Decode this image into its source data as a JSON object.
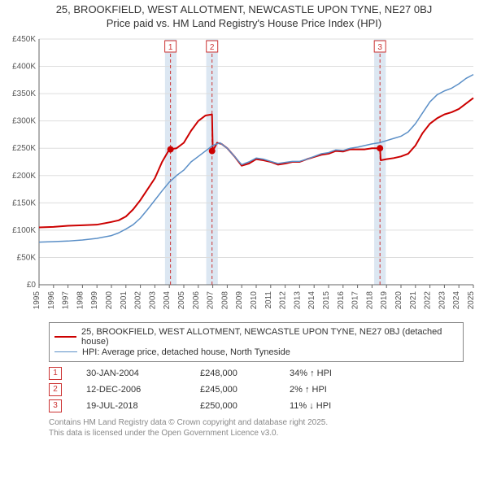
{
  "title_line1": "25, BROOKFIELD, WEST ALLOTMENT, NEWCASTLE UPON TYNE, NE27 0BJ",
  "title_line2": "Price paid vs. HM Land Registry's House Price Index (HPI)",
  "chart": {
    "type": "line",
    "background_color": "#ffffff",
    "grid_color": "#dddddd",
    "axis_color": "#666666",
    "xlim": [
      1995,
      2025
    ],
    "ylim": [
      0,
      450000
    ],
    "ytick_step": 50000,
    "ytick_prefix": "£",
    "ytick_suffixK": "K",
    "xticks": [
      1995,
      1996,
      1997,
      1998,
      1999,
      2000,
      2001,
      2002,
      2003,
      2004,
      2005,
      2006,
      2007,
      2008,
      2009,
      2010,
      2011,
      2012,
      2013,
      2014,
      2015,
      2016,
      2017,
      2018,
      2019,
      2020,
      2021,
      2022,
      2023,
      2024,
      2025
    ],
    "band_color": "#dce7f2",
    "vline_color": "#cc3333",
    "vline_dash": "4,3",
    "marker_box_border": "#cc3333",
    "marker_box_text": "#cc3333",
    "series": [
      {
        "name": "price_paid",
        "label": "25, BROOKFIELD, WEST ALLOTMENT, NEWCASTLE UPON TYNE, NE27 0BJ (detached house)",
        "color": "#cc0000",
        "width": 2,
        "points": [
          [
            1995,
            105000
          ],
          [
            1996,
            106000
          ],
          [
            1997,
            108000
          ],
          [
            1998,
            109000
          ],
          [
            1999,
            110000
          ],
          [
            2000,
            115000
          ],
          [
            2000.5,
            118000
          ],
          [
            2001,
            125000
          ],
          [
            2001.5,
            138000
          ],
          [
            2002,
            155000
          ],
          [
            2002.5,
            175000
          ],
          [
            2003,
            195000
          ],
          [
            2003.5,
            225000
          ],
          [
            2004,
            248000
          ],
          [
            2004.5,
            250000
          ],
          [
            2005,
            260000
          ],
          [
            2005.5,
            282000
          ],
          [
            2006,
            300000
          ],
          [
            2006.5,
            310000
          ],
          [
            2006.95,
            312000
          ],
          [
            2007,
            245000
          ],
          [
            2007.3,
            260000
          ],
          [
            2007.6,
            258000
          ],
          [
            2008,
            250000
          ],
          [
            2008.5,
            235000
          ],
          [
            2009,
            218000
          ],
          [
            2009.5,
            222000
          ],
          [
            2010,
            230000
          ],
          [
            2010.5,
            228000
          ],
          [
            2011,
            225000
          ],
          [
            2011.5,
            220000
          ],
          [
            2012,
            222000
          ],
          [
            2012.5,
            225000
          ],
          [
            2013,
            225000
          ],
          [
            2013.5,
            230000
          ],
          [
            2014,
            234000
          ],
          [
            2014.5,
            238000
          ],
          [
            2015,
            240000
          ],
          [
            2015.5,
            245000
          ],
          [
            2016,
            244000
          ],
          [
            2016.5,
            248000
          ],
          [
            2017,
            248000
          ],
          [
            2017.5,
            248000
          ],
          [
            2018,
            250000
          ],
          [
            2018.55,
            250000
          ],
          [
            2018.6,
            228000
          ],
          [
            2019,
            230000
          ],
          [
            2019.5,
            232000
          ],
          [
            2020,
            235000
          ],
          [
            2020.5,
            240000
          ],
          [
            2021,
            255000
          ],
          [
            2021.5,
            278000
          ],
          [
            2022,
            295000
          ],
          [
            2022.5,
            305000
          ],
          [
            2023,
            312000
          ],
          [
            2023.5,
            316000
          ],
          [
            2024,
            322000
          ],
          [
            2024.5,
            332000
          ],
          [
            2025,
            342000
          ]
        ],
        "sale_dots": [
          [
            2004.08,
            248000
          ],
          [
            2006.95,
            245000
          ],
          [
            2018.55,
            250000
          ]
        ]
      },
      {
        "name": "hpi",
        "label": "HPI: Average price, detached house, North Tyneside",
        "color": "#5b8fc7",
        "width": 1.5,
        "points": [
          [
            1995,
            78000
          ],
          [
            1996,
            79000
          ],
          [
            1997,
            80000
          ],
          [
            1998,
            82000
          ],
          [
            1999,
            85000
          ],
          [
            2000,
            90000
          ],
          [
            2000.5,
            95000
          ],
          [
            2001,
            102000
          ],
          [
            2001.5,
            110000
          ],
          [
            2002,
            122000
          ],
          [
            2002.5,
            138000
          ],
          [
            2003,
            155000
          ],
          [
            2003.5,
            172000
          ],
          [
            2004,
            188000
          ],
          [
            2004.5,
            200000
          ],
          [
            2005,
            210000
          ],
          [
            2005.5,
            225000
          ],
          [
            2006,
            235000
          ],
          [
            2006.5,
            245000
          ],
          [
            2007,
            255000
          ],
          [
            2007.5,
            260000
          ],
          [
            2008,
            250000
          ],
          [
            2008.5,
            235000
          ],
          [
            2009,
            220000
          ],
          [
            2009.5,
            225000
          ],
          [
            2010,
            232000
          ],
          [
            2010.5,
            230000
          ],
          [
            2011,
            226000
          ],
          [
            2011.5,
            222000
          ],
          [
            2012,
            224000
          ],
          [
            2012.5,
            226000
          ],
          [
            2013,
            226000
          ],
          [
            2013.5,
            230000
          ],
          [
            2014,
            235000
          ],
          [
            2014.5,
            240000
          ],
          [
            2015,
            242000
          ],
          [
            2015.5,
            247000
          ],
          [
            2016,
            246000
          ],
          [
            2016.5,
            250000
          ],
          [
            2017,
            252000
          ],
          [
            2017.5,
            255000
          ],
          [
            2018,
            258000
          ],
          [
            2018.5,
            260000
          ],
          [
            2019,
            264000
          ],
          [
            2019.5,
            268000
          ],
          [
            2020,
            272000
          ],
          [
            2020.5,
            280000
          ],
          [
            2021,
            295000
          ],
          [
            2021.5,
            315000
          ],
          [
            2022,
            335000
          ],
          [
            2022.5,
            348000
          ],
          [
            2023,
            355000
          ],
          [
            2023.5,
            360000
          ],
          [
            2024,
            368000
          ],
          [
            2024.5,
            378000
          ],
          [
            2025,
            385000
          ]
        ]
      }
    ],
    "events": [
      {
        "n": "1",
        "x": 2004.08,
        "band": [
          2003.7,
          2004.5
        ]
      },
      {
        "n": "2",
        "x": 2006.95,
        "band": [
          2006.55,
          2007.35
        ]
      },
      {
        "n": "3",
        "x": 2018.55,
        "band": [
          2018.15,
          2018.95
        ]
      }
    ]
  },
  "legend": {
    "items": [
      {
        "series": "price_paid"
      },
      {
        "series": "hpi"
      }
    ]
  },
  "marker_rows": [
    {
      "n": "1",
      "date": "30-JAN-2004",
      "price": "£248,000",
      "delta": "34% ↑ HPI"
    },
    {
      "n": "2",
      "date": "12-DEC-2006",
      "price": "£245,000",
      "delta": "2% ↑ HPI"
    },
    {
      "n": "3",
      "date": "19-JUL-2018",
      "price": "£250,000",
      "delta": "11% ↓ HPI"
    }
  ],
  "footnote_line1": "Contains HM Land Registry data © Crown copyright and database right 2025.",
  "footnote_line2": "This data is licensed under the Open Government Licence v3.0."
}
